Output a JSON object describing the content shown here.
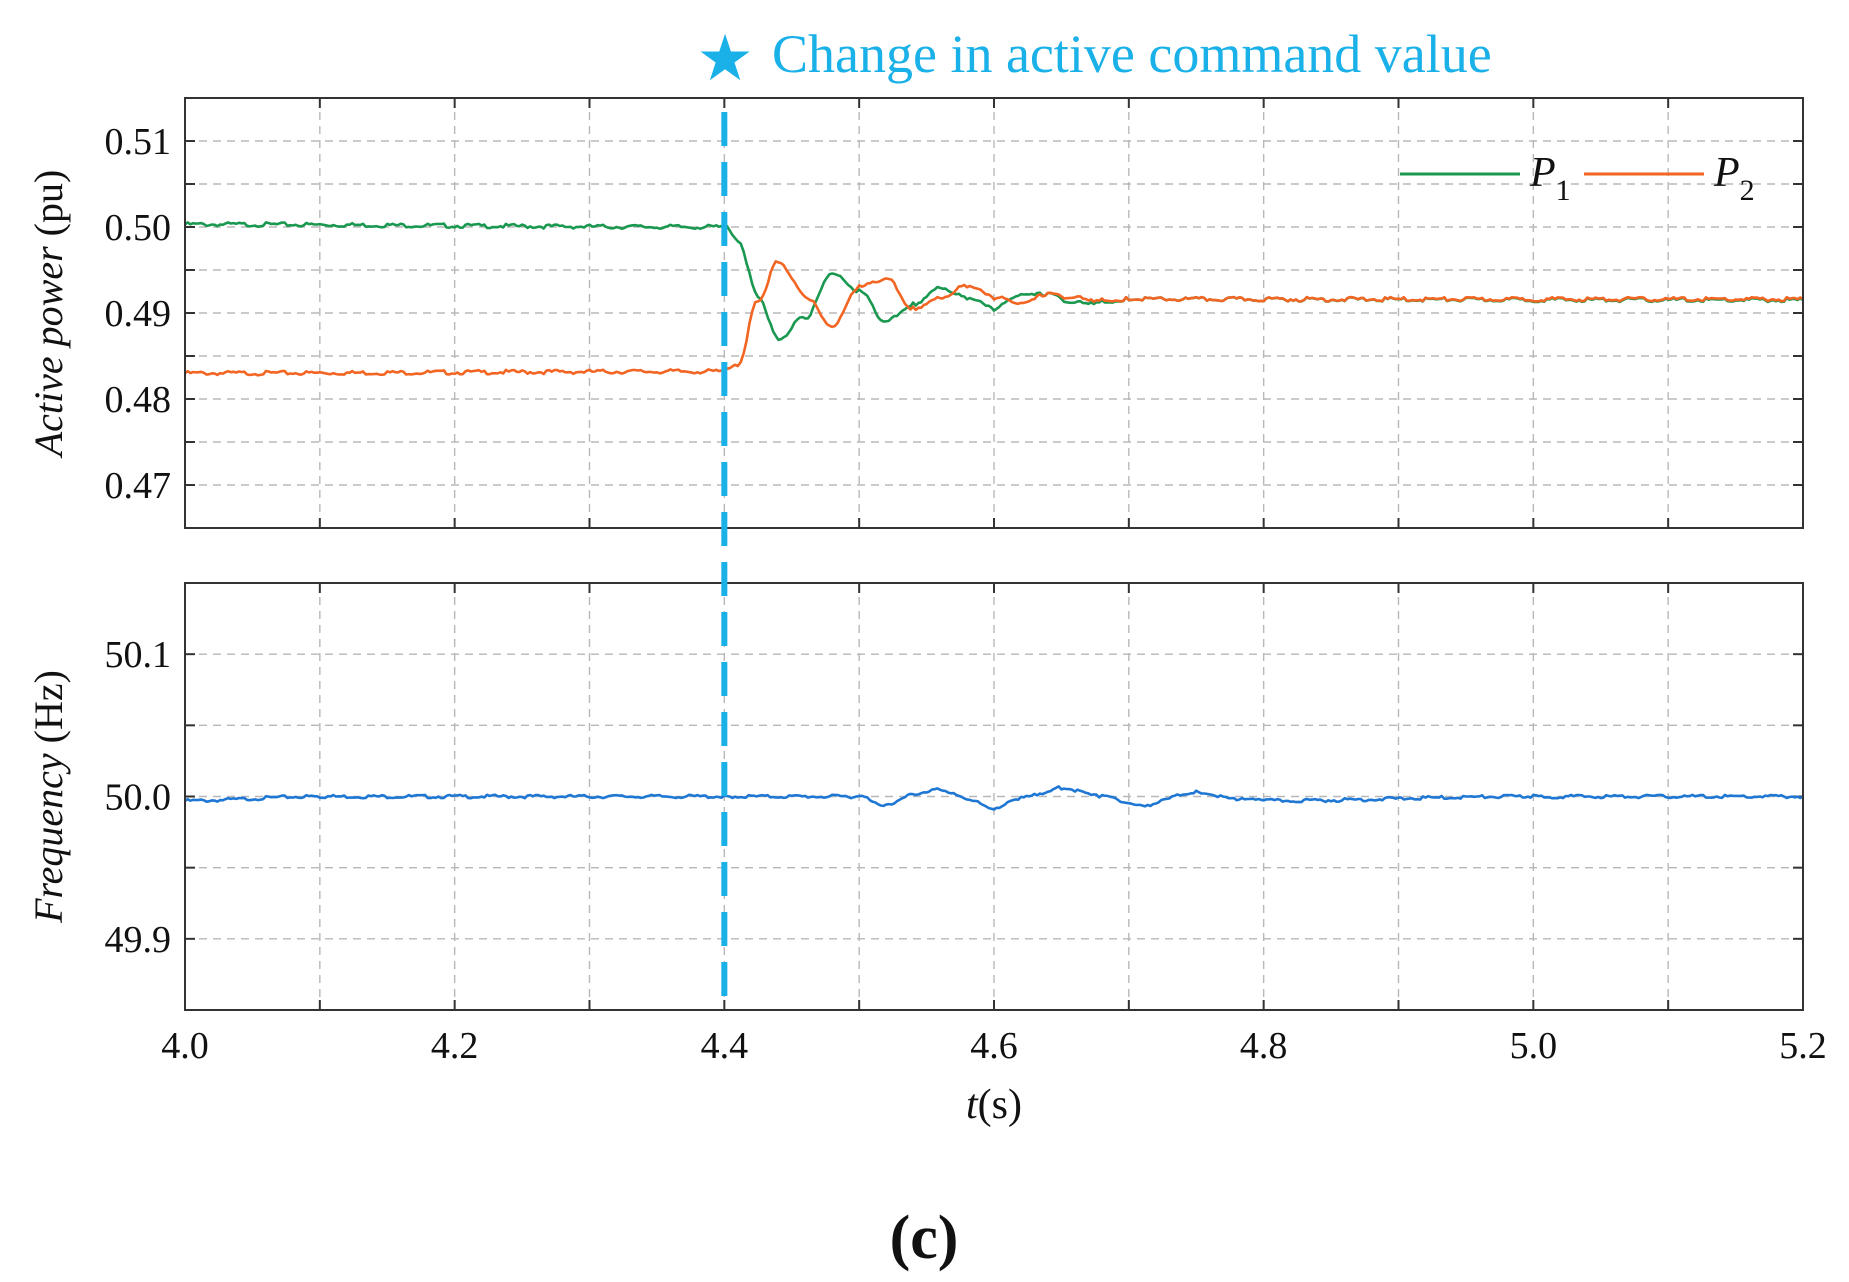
{
  "annotation": {
    "star_glyph": "★",
    "text": "Change in active command value",
    "color": "#1ab0e8",
    "x_value": 4.4
  },
  "panel_label": "(c)",
  "colors": {
    "p1": "#1a9850",
    "p2": "#f26522",
    "freq": "#1f77d4",
    "grid": "#b8b8b8",
    "axis": "#333333"
  },
  "chart_data": [
    {
      "type": "line",
      "title": "",
      "ylabel_italic": "Active power",
      "ylabel_unit": " (pu)",
      "xlim": [
        4.0,
        5.2
      ],
      "ylim": [
        0.465,
        0.515
      ],
      "yticks": [
        0.47,
        0.48,
        0.49,
        0.5,
        0.51
      ],
      "ytick_labels": [
        "0.47",
        "0.48",
        "0.49",
        "0.50",
        "0.51"
      ],
      "grid": true,
      "legend_position": "top-right",
      "series": [
        {
          "name": "P1",
          "legend_main": "P",
          "legend_sub": "1",
          "x": [
            4.0,
            4.4,
            4.41,
            4.425,
            4.44,
            4.46,
            4.48,
            4.5,
            4.52,
            4.54,
            4.56,
            4.58,
            4.6,
            4.62,
            4.64,
            4.66,
            4.68,
            4.7,
            5.2
          ],
          "y": [
            0.5003,
            0.5,
            0.4985,
            0.492,
            0.487,
            0.4895,
            0.4945,
            0.4925,
            0.489,
            0.491,
            0.493,
            0.4918,
            0.4905,
            0.492,
            0.4922,
            0.4912,
            0.4913,
            0.4916,
            0.4915
          ]
        },
        {
          "name": "P2",
          "legend_main": "P",
          "legend_sub": "2",
          "x": [
            4.0,
            4.4,
            4.41,
            4.425,
            4.44,
            4.46,
            4.48,
            4.5,
            4.52,
            4.54,
            4.56,
            4.58,
            4.6,
            4.62,
            4.64,
            4.66,
            4.68,
            4.7,
            5.2
          ],
          "y": [
            0.483,
            0.4832,
            0.484,
            0.4915,
            0.496,
            0.492,
            0.4883,
            0.493,
            0.494,
            0.4905,
            0.4918,
            0.4932,
            0.4918,
            0.491,
            0.4922,
            0.4918,
            0.4915,
            0.4916,
            0.4916
          ]
        }
      ]
    },
    {
      "type": "line",
      "title": "",
      "ylabel_italic": "Frequency",
      "ylabel_unit": " (Hz)",
      "xlabel_italic": "t",
      "xlabel_unit": "(s)",
      "xlim": [
        4.0,
        5.2
      ],
      "ylim": [
        49.85,
        50.15
      ],
      "xticks": [
        4.0,
        4.2,
        4.4,
        4.6,
        4.8,
        5.0,
        5.2
      ],
      "xtick_labels": [
        "4.0",
        "4.2",
        "4.4",
        "4.6",
        "4.8",
        "5.0",
        "5.2"
      ],
      "yticks": [
        49.9,
        50.0,
        50.1
      ],
      "ytick_labels": [
        "49.9",
        "50.0",
        "50.1"
      ],
      "grid": true,
      "series": [
        {
          "name": "Frequency",
          "x": [
            4.0,
            4.1,
            4.4,
            4.5,
            4.52,
            4.54,
            4.56,
            4.58,
            4.6,
            4.62,
            4.65,
            4.68,
            4.71,
            4.75,
            4.78,
            4.8,
            5.0,
            5.2
          ],
          "y": [
            49.997,
            50.0,
            50.0,
            50.0,
            49.994,
            50.002,
            50.005,
            49.998,
            49.991,
            49.999,
            50.006,
            50.0,
            49.994,
            50.003,
            49.998,
            49.997,
            50.0,
            50.0
          ]
        }
      ]
    }
  ]
}
